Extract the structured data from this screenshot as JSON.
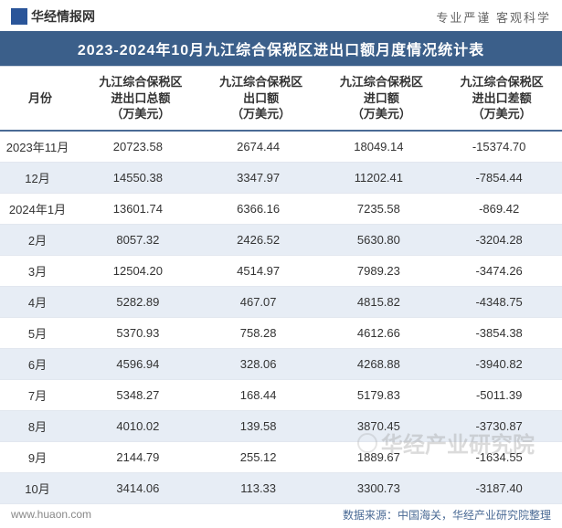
{
  "brand": {
    "name": "华经情报网"
  },
  "top_right": "专业严谨   客观科学",
  "title": "2023-2024年10月九江综合保税区进出口额月度情况统计表",
  "columns": [
    "月份",
    "九江综合保税区\n进出口总额\n（万美元）",
    "九江综合保税区\n出口额\n（万美元）",
    "九江综合保税区\n进口额\n（万美元）",
    "九江综合保税区\n进出口差额\n（万美元）"
  ],
  "rows": [
    {
      "month": "2023年11月",
      "total": "20723.58",
      "export": "2674.44",
      "import": "18049.14",
      "diff": "-15374.70"
    },
    {
      "month": "12月",
      "total": "14550.38",
      "export": "3347.97",
      "import": "11202.41",
      "diff": "-7854.44"
    },
    {
      "month": "2024年1月",
      "total": "13601.74",
      "export": "6366.16",
      "import": "7235.58",
      "diff": "-869.42"
    },
    {
      "month": "2月",
      "total": "8057.32",
      "export": "2426.52",
      "import": "5630.80",
      "diff": "-3204.28"
    },
    {
      "month": "3月",
      "total": "12504.20",
      "export": "4514.97",
      "import": "7989.23",
      "diff": "-3474.26"
    },
    {
      "month": "4月",
      "total": "5282.89",
      "export": "467.07",
      "import": "4815.82",
      "diff": "-4348.75"
    },
    {
      "month": "5月",
      "total": "5370.93",
      "export": "758.28",
      "import": "4612.66",
      "diff": "-3854.38"
    },
    {
      "month": "6月",
      "total": "4596.94",
      "export": "328.06",
      "import": "4268.88",
      "diff": "-3940.82"
    },
    {
      "month": "7月",
      "total": "5348.27",
      "export": "168.44",
      "import": "5179.83",
      "diff": "-5011.39"
    },
    {
      "month": "8月",
      "total": "4010.02",
      "export": "139.58",
      "import": "3870.45",
      "diff": "-3730.87"
    },
    {
      "month": "9月",
      "total": "2144.79",
      "export": "255.12",
      "import": "1889.67",
      "diff": "-1634.55"
    },
    {
      "month": "10月",
      "total": "3414.06",
      "export": "113.33",
      "import": "3300.73",
      "diff": "-3187.40"
    }
  ],
  "footer": {
    "site": "www.huaon.com",
    "source": "数据来源：中国海关，华经产业研究院整理"
  },
  "watermark": "华经产业研究院",
  "style": {
    "title_bg": "#3b5f8a",
    "title_color": "#ffffff",
    "header_border": "#4a6a95",
    "row_alt_bg": "#e7edf5",
    "row_border": "#e2e7ef",
    "text_color": "#333333",
    "footer_source_color": "#4a6a95",
    "font_main": 13
  }
}
